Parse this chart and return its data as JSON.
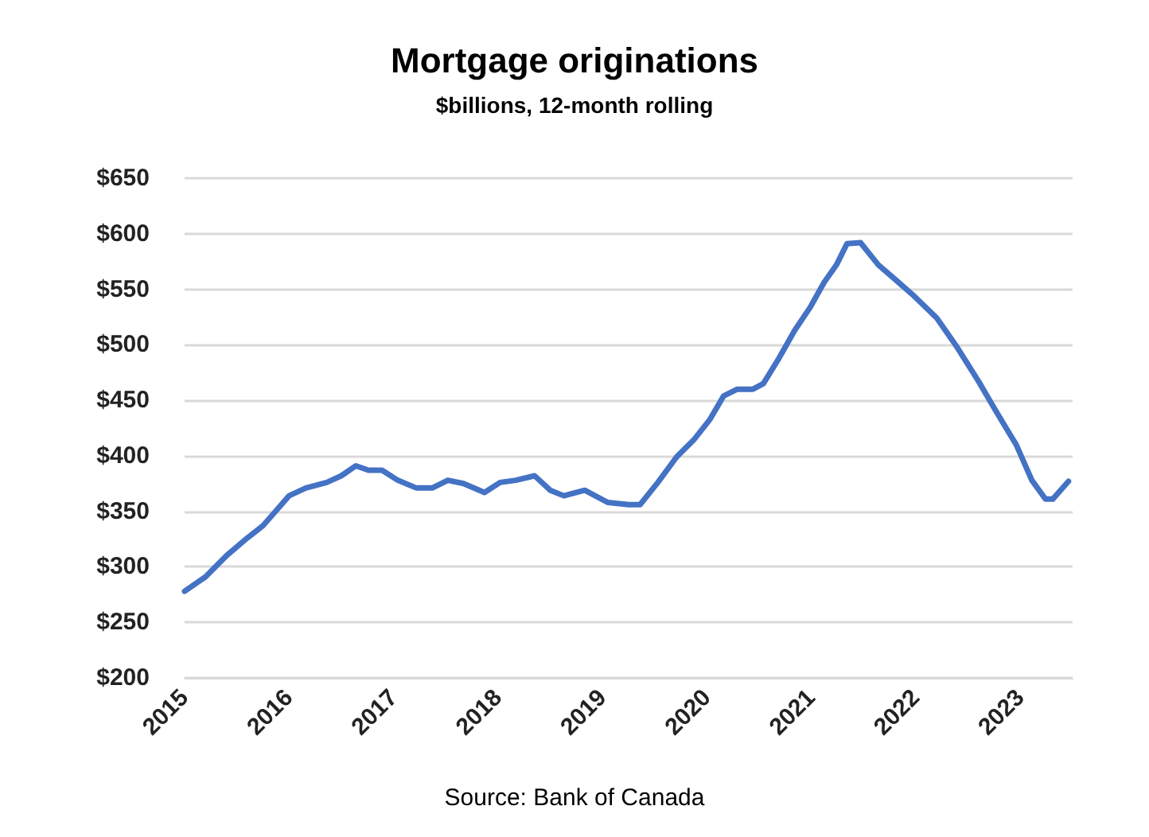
{
  "chart_data": {
    "type": "line",
    "title": "Mortgage originations",
    "subtitle": "$billions, 12-month rolling",
    "annotations": [
      "Source: Bank of Canada"
    ],
    "x": [
      2015.0,
      2015.2,
      2015.4,
      2015.6,
      2015.75,
      2015.88,
      2016.0,
      2016.16,
      2016.36,
      2016.5,
      2016.64,
      2016.76,
      2016.89,
      2017.04,
      2017.22,
      2017.37,
      2017.52,
      2017.67,
      2017.87,
      2018.02,
      2018.17,
      2018.35,
      2018.5,
      2018.63,
      2018.83,
      2019.05,
      2019.25,
      2019.36,
      2019.53,
      2019.71,
      2019.88,
      2020.03,
      2020.16,
      2020.29,
      2020.44,
      2020.54,
      2020.69,
      2020.84,
      2020.99,
      2021.12,
      2021.24,
      2021.34,
      2021.47,
      2021.64,
      2021.8,
      2021.97,
      2022.2,
      2022.4,
      2022.6,
      2022.78,
      2022.96,
      2023.11,
      2023.24,
      2023.31,
      2023.46
    ],
    "series": [
      {
        "color": "#4472c4",
        "values": [
          278,
          291,
          310,
          326,
          337,
          351,
          364,
          371,
          376,
          382,
          391,
          387,
          387,
          378,
          371,
          371,
          378,
          375,
          367,
          376,
          378,
          382,
          369,
          364,
          369,
          358,
          356,
          356,
          376,
          399,
          415,
          433,
          454,
          460,
          460,
          465,
          488,
          513,
          534,
          556,
          572,
          591,
          592,
          572,
          559,
          545,
          524,
          497,
          467,
          438,
          410,
          378,
          361,
          361,
          377
        ]
      }
    ],
    "xlim": [
      2015,
      2023.5
    ],
    "xticks": [
      2015,
      2016,
      2017,
      2018,
      2019,
      2020,
      2021,
      2022,
      2023
    ],
    "ylim": [
      200,
      650
    ],
    "yticks": [
      {
        "value": 200,
        "label": "$200"
      },
      {
        "value": 250,
        "label": "$250"
      },
      {
        "value": 300,
        "label": "$300"
      },
      {
        "value": 350,
        "label": "$350"
      },
      {
        "value": 400,
        "label": "$400"
      },
      {
        "value": 450,
        "label": "$450"
      },
      {
        "value": 500,
        "label": "$500"
      },
      {
        "value": 550,
        "label": "$550"
      },
      {
        "value": 600,
        "label": "$600"
      },
      {
        "value": 650,
        "label": "$650"
      }
    ],
    "grid": "y",
    "marker": "none",
    "line_style": "solid"
  }
}
